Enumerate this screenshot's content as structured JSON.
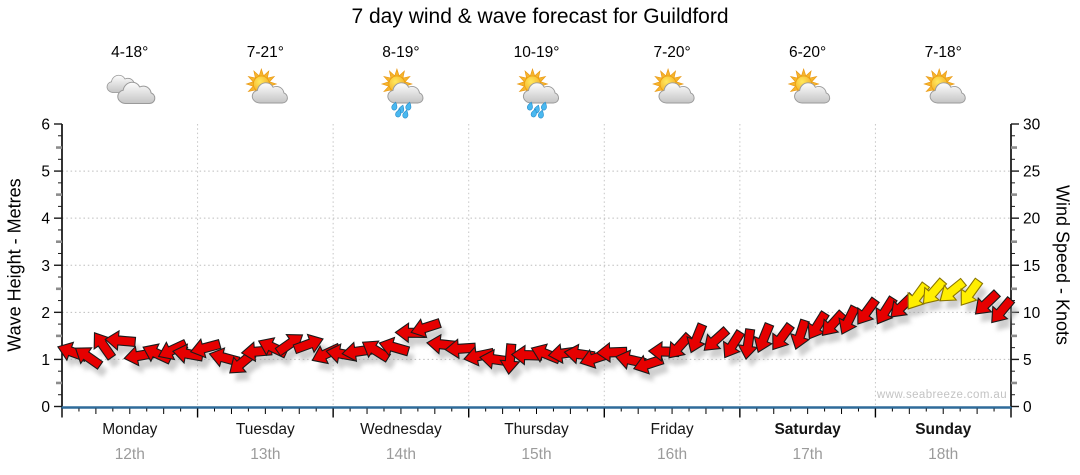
{
  "page": {
    "title": "7 day wind & wave forecast for Guildford",
    "watermark": "www.seabreeze.com.au"
  },
  "chart_data": {
    "type": "wind-arrow-timeline",
    "title": "7 day wind & wave forecast for Guildford",
    "watermark": "www.seabreeze.com.au",
    "left_axis": {
      "label": "Wave Height - Metres",
      "min": 0,
      "max": 6,
      "ticks": [
        0,
        1,
        2,
        3,
        4,
        5,
        6
      ]
    },
    "right_axis": {
      "label": "Wind Speed - Knots",
      "min": 0,
      "max": 30,
      "ticks": [
        0,
        5,
        10,
        15,
        20,
        25,
        30
      ]
    },
    "days": [
      {
        "name": "Monday",
        "date": "12th",
        "bold": false,
        "temp": "4-18°",
        "icon": "cloudy"
      },
      {
        "name": "Tuesday",
        "date": "13th",
        "bold": false,
        "temp": "7-21°",
        "icon": "partly-cloudy"
      },
      {
        "name": "Wednesday",
        "date": "14th",
        "bold": false,
        "temp": "8-19°",
        "icon": "showers"
      },
      {
        "name": "Thursday",
        "date": "15th",
        "bold": false,
        "temp": "10-19°",
        "icon": "showers"
      },
      {
        "name": "Friday",
        "date": "16th",
        "bold": false,
        "temp": "7-20°",
        "icon": "partly-cloudy"
      },
      {
        "name": "Saturday",
        "date": "17th",
        "bold": true,
        "temp": "6-20°",
        "icon": "partly-cloudy"
      },
      {
        "name": "Sunday",
        "date": "18th",
        "bold": true,
        "temp": "7-18°",
        "icon": "partly-cloudy"
      }
    ],
    "wind": {
      "points_per_day": 8,
      "interval_hours": 3,
      "knots": [
        5.8,
        5.5,
        6.3,
        7.0,
        5.6,
        5.4,
        6.0,
        5.8,
        6.0,
        5.2,
        4.8,
        5.6,
        6.3,
        6.9,
        6.4,
        5.6,
        5.8,
        5.6,
        6.0,
        6.5,
        7.6,
        8.4,
        6.8,
        5.9,
        5.4,
        5.2,
        4.8,
        5.5,
        5.8,
        5.4,
        5.6,
        5.3,
        5.5,
        5.0,
        4.7,
        5.6,
        6.4,
        7.4,
        6.8,
        6.6,
        6.8,
        7.0,
        7.4,
        7.8,
        8.3,
        8.8,
        9.3,
        9.8,
        10.2,
        10.8,
        11.4,
        12.2,
        12.4,
        11.8,
        11.0,
        10.3
      ],
      "direction_deg": [
        200,
        215,
        235,
        185,
        170,
        205,
        155,
        190,
        165,
        195,
        140,
        175,
        205,
        -35,
        -20,
        155,
        190,
        172,
        212,
        196,
        181,
        162,
        186,
        176,
        168,
        188,
        95,
        182,
        202,
        172,
        188,
        162,
        178,
        192,
        162,
        182,
        132,
        112,
        138,
        122,
        98,
        112,
        126,
        108,
        122,
        132,
        116,
        126,
        122,
        136,
        126,
        131,
        141,
        126,
        136,
        130
      ],
      "yellow_indices": [
        50,
        51,
        52,
        53
      ]
    },
    "colors": {
      "arrow_red": "#e60000",
      "arrow_yellow": "#ffee00",
      "arrow_outline": "#1a1a1a",
      "yellow_outline": "#8a7500",
      "baseline_blue": "#2f6b9a",
      "grid": "#bdbdbd",
      "day_separator": "#c6c6c6",
      "tick_black": "#1a1a1a",
      "tick_gray": "#8c8c8c",
      "day_name_text": "#151515",
      "date_text": "#9b9b9b",
      "shadow": "#9e9e9e"
    }
  }
}
